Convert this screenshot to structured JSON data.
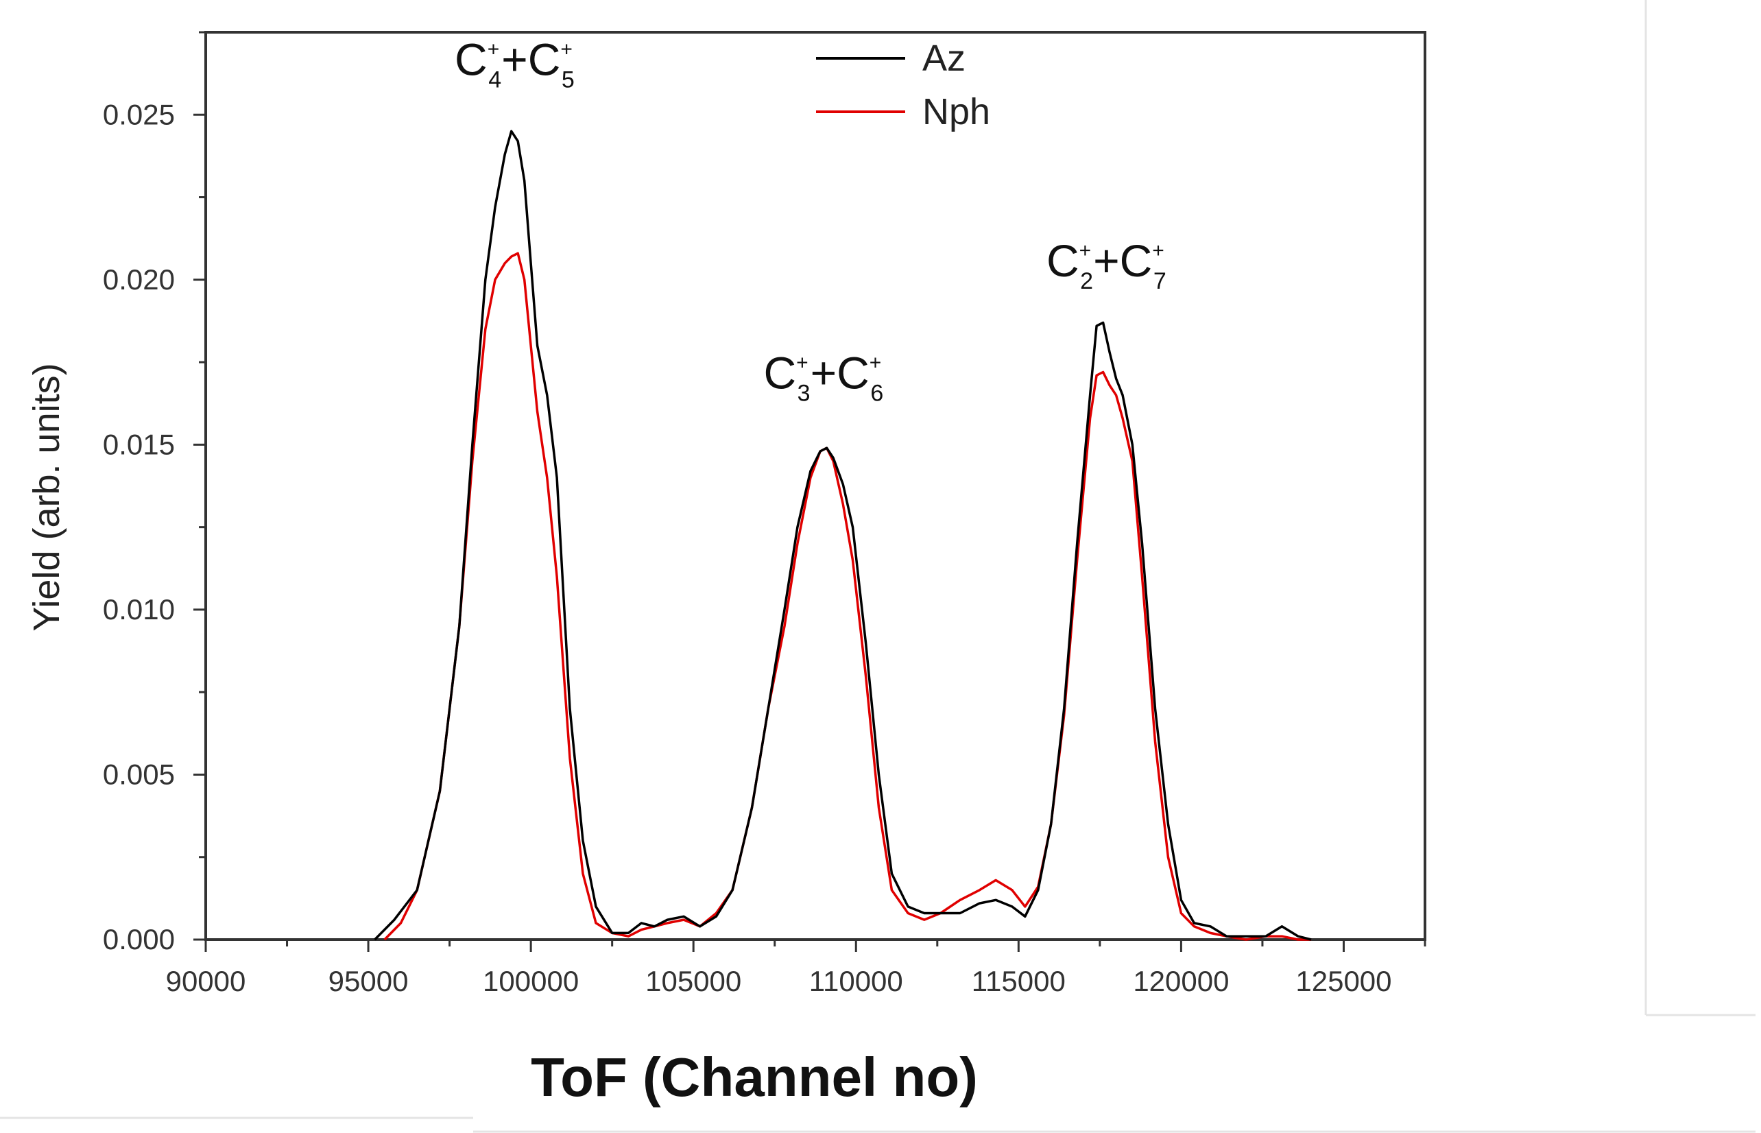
{
  "chart_data": {
    "type": "line",
    "title": "",
    "xlabel": "ToF (Channel no)",
    "ylabel": "Yield (arb. units)",
    "xlim": [
      90000,
      127500
    ],
    "ylim": [
      0.0,
      0.0275
    ],
    "x_ticks": [
      90000,
      95000,
      100000,
      105000,
      110000,
      115000,
      120000,
      125000
    ],
    "y_ticks": [
      0.0,
      0.005,
      0.01,
      0.015,
      0.02,
      0.025
    ],
    "x_tick_labels": [
      "90000",
      "95000",
      "100000",
      "105000",
      "110000",
      "115000",
      "120000",
      "125000"
    ],
    "y_tick_labels": [
      "0.000",
      "0.005",
      "0.010",
      "0.015",
      "0.020",
      "0.025"
    ],
    "grid": false,
    "legend": {
      "placement": "top-center",
      "entries": [
        {
          "name": "Az",
          "color": "#000000"
        },
        {
          "name": "Nph",
          "color": "#e00000"
        }
      ]
    },
    "series": [
      {
        "name": "Az",
        "color": "#000000",
        "x": [
          95200,
          95800,
          96500,
          97200,
          97800,
          98200,
          98600,
          98900,
          99200,
          99400,
          99600,
          99800,
          100000,
          100200,
          100500,
          100800,
          101200,
          101600,
          102000,
          102500,
          103000,
          103400,
          103800,
          104200,
          104700,
          105200,
          105700,
          106200,
          106800,
          107300,
          107800,
          108200,
          108600,
          108900,
          109100,
          109300,
          109600,
          109900,
          110300,
          110700,
          111100,
          111600,
          112100,
          112600,
          113200,
          113800,
          114300,
          114800,
          115200,
          115600,
          116000,
          116400,
          116800,
          117200,
          117400,
          117600,
          117800,
          118000,
          118200,
          118500,
          118800,
          119200,
          119600,
          120000,
          120400,
          120900,
          121400,
          122000,
          122600,
          123100,
          123600,
          124000
        ],
        "y": [
          0.0,
          0.0006,
          0.0015,
          0.0045,
          0.0095,
          0.015,
          0.02,
          0.0222,
          0.0238,
          0.0245,
          0.0242,
          0.023,
          0.0205,
          0.018,
          0.0165,
          0.014,
          0.007,
          0.003,
          0.001,
          0.0002,
          0.0002,
          0.0005,
          0.0004,
          0.0006,
          0.0007,
          0.0004,
          0.0007,
          0.0015,
          0.004,
          0.007,
          0.01,
          0.0125,
          0.0142,
          0.0148,
          0.0149,
          0.0146,
          0.0138,
          0.0125,
          0.009,
          0.005,
          0.002,
          0.001,
          0.0008,
          0.0008,
          0.0008,
          0.0011,
          0.0012,
          0.001,
          0.0007,
          0.0015,
          0.0035,
          0.007,
          0.012,
          0.0165,
          0.0186,
          0.0187,
          0.0178,
          0.017,
          0.0165,
          0.015,
          0.012,
          0.007,
          0.0035,
          0.0012,
          0.0005,
          0.0004,
          0.0001,
          0.0001,
          0.0001,
          0.0004,
          0.0001,
          0.0
        ]
      },
      {
        "name": "Nph",
        "color": "#e00000",
        "x": [
          95500,
          96000,
          96500,
          97200,
          97800,
          98200,
          98600,
          98900,
          99200,
          99400,
          99600,
          99800,
          100000,
          100200,
          100500,
          100800,
          101200,
          101600,
          102000,
          102500,
          103000,
          103400,
          103800,
          104200,
          104700,
          105200,
          105700,
          106200,
          106800,
          107300,
          107800,
          108200,
          108600,
          108900,
          109100,
          109300,
          109600,
          109900,
          110300,
          110700,
          111100,
          111600,
          112100,
          112600,
          113200,
          113800,
          114300,
          114800,
          115200,
          115600,
          116000,
          116400,
          116800,
          117200,
          117400,
          117600,
          117800,
          118000,
          118200,
          118500,
          118800,
          119200,
          119600,
          120000,
          120400,
          120900,
          121400,
          122000,
          122600,
          123100,
          123600,
          124000
        ],
        "y": [
          0.0,
          0.0005,
          0.0015,
          0.0045,
          0.0095,
          0.0145,
          0.0185,
          0.02,
          0.0205,
          0.0207,
          0.0208,
          0.02,
          0.018,
          0.016,
          0.014,
          0.011,
          0.0055,
          0.002,
          0.0005,
          0.0002,
          0.0001,
          0.0003,
          0.0004,
          0.0005,
          0.0006,
          0.0004,
          0.0008,
          0.0015,
          0.004,
          0.007,
          0.0095,
          0.012,
          0.014,
          0.0148,
          0.0149,
          0.0145,
          0.0132,
          0.0115,
          0.008,
          0.004,
          0.0015,
          0.0008,
          0.0006,
          0.0008,
          0.0012,
          0.0015,
          0.0018,
          0.0015,
          0.001,
          0.0016,
          0.0035,
          0.0068,
          0.0115,
          0.0158,
          0.0171,
          0.0172,
          0.0168,
          0.0165,
          0.0158,
          0.0145,
          0.011,
          0.006,
          0.0025,
          0.0008,
          0.0004,
          0.0002,
          0.0001,
          0.0,
          0.0001,
          0.0001,
          0.0,
          0.0
        ]
      }
    ],
    "annotations": [
      {
        "base1": "C",
        "sub1": "4",
        "sup1": "+",
        "plus": "+",
        "base2": "C",
        "sub2": "5",
        "sup2": "+",
        "x": 99500,
        "y": 0.0262
      },
      {
        "base1": "C",
        "sub1": "3",
        "sup1": "+",
        "plus": "+",
        "base2": "C",
        "sub2": "6",
        "sup2": "+",
        "x": 109000,
        "y": 0.0167
      },
      {
        "base1": "C",
        "sub1": "2",
        "sup1": "+",
        "plus": "+",
        "base2": "C",
        "sub2": "7",
        "sup2": "+",
        "x": 117700,
        "y": 0.0201
      }
    ]
  }
}
